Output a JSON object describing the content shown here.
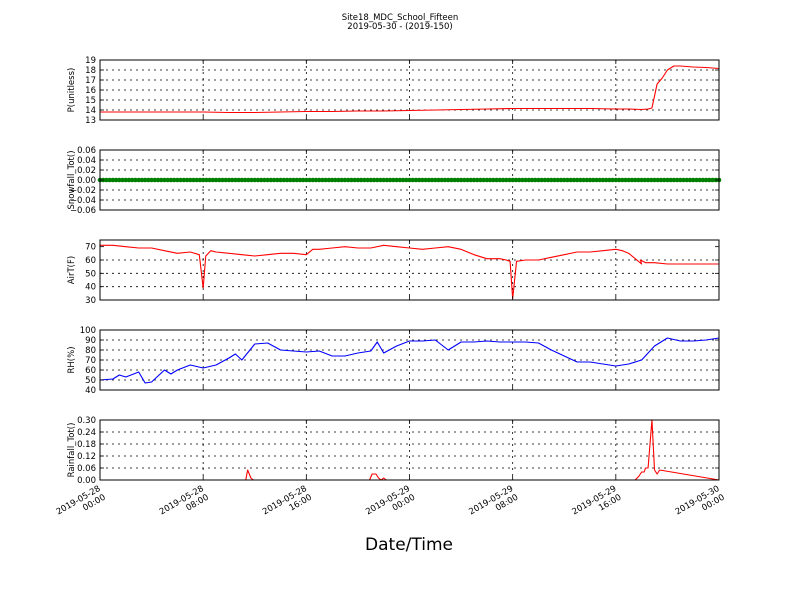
{
  "figure": {
    "title": "Site18_MDC_School_Fifteen",
    "subtitle": "2019-05-30 - (2019-150)",
    "xlabel": "Date/Time",
    "x_ticks": [
      {
        "t": 0,
        "lines": [
          "2019-05-28",
          "00:00"
        ]
      },
      {
        "t": 8,
        "lines": [
          "2019-05-28",
          "08:00"
        ]
      },
      {
        "t": 16,
        "lines": [
          "2019-05-28",
          "16:00"
        ]
      },
      {
        "t": 24,
        "lines": [
          "2019-05-29",
          "00:00"
        ]
      },
      {
        "t": 32,
        "lines": [
          "2019-05-29",
          "08:00"
        ]
      },
      {
        "t": 40,
        "lines": [
          "2019-05-29",
          "16:00"
        ]
      },
      {
        "t": 48,
        "lines": [
          "2019-05-30",
          "00:00"
        ]
      }
    ],
    "x_range_hours": [
      0,
      48
    ]
  },
  "chart_data": [
    {
      "type": "line",
      "ylabel": "P(unitless)",
      "ylim": [
        13,
        19
      ],
      "yticks": [
        13,
        14,
        15,
        16,
        17,
        18,
        19
      ],
      "ytick_labels": [
        "13",
        "14",
        "15",
        "16",
        "17",
        "18",
        "19"
      ],
      "grid": true,
      "series": [
        {
          "color": "#ff0000",
          "x": [
            0,
            2,
            4,
            6,
            8,
            10,
            12,
            14,
            16,
            18,
            20,
            22,
            24,
            26,
            28,
            30,
            32,
            34,
            36,
            38,
            40,
            41,
            42,
            42.5,
            42.8,
            43.2,
            43.6,
            44,
            44.5,
            45,
            46,
            47,
            48
          ],
          "y": [
            13.8,
            13.8,
            13.8,
            13.8,
            13.8,
            13.75,
            13.75,
            13.8,
            13.85,
            13.85,
            13.9,
            13.9,
            13.95,
            14.0,
            14.05,
            14.1,
            14.15,
            14.15,
            14.15,
            14.15,
            14.1,
            14.1,
            14.05,
            14.1,
            14.2,
            16.6,
            17.2,
            18.0,
            18.4,
            18.4,
            18.3,
            18.25,
            18.15
          ]
        }
      ]
    },
    {
      "type": "scatter",
      "ylabel": "Snowfall_Tot()",
      "ylim": [
        -0.06,
        0.06
      ],
      "yticks": [
        -0.06,
        -0.04,
        -0.02,
        0.0,
        0.02,
        0.04,
        0.06
      ],
      "ytick_labels": [
        "−0.06",
        "−0.04",
        "−0.02",
        "0.00",
        "0.02",
        "0.04",
        "0.06"
      ],
      "grid": true,
      "series": [
        {
          "color": "#007f00",
          "constant": 0.0,
          "x_start": 0,
          "x_end": 48
        }
      ]
    },
    {
      "type": "line",
      "ylabel": "AirT(F)",
      "ylim": [
        30,
        75
      ],
      "yticks": [
        30,
        40,
        50,
        60,
        70
      ],
      "ytick_labels": [
        "30",
        "40",
        "50",
        "60",
        "70"
      ],
      "grid": true,
      "series": [
        {
          "color": "#ff0000",
          "x": [
            0,
            1,
            2,
            3,
            4,
            5,
            6,
            7,
            7.7,
            8,
            8.2,
            8.6,
            9,
            10,
            11,
            12,
            13,
            14,
            15,
            16,
            16.5,
            17,
            18,
            19,
            20,
            21,
            22,
            23,
            24,
            25,
            26,
            27,
            28,
            29,
            30,
            31,
            31.5,
            31.8,
            32,
            32.3,
            33,
            34,
            35,
            36,
            37,
            38,
            39,
            40,
            40.5,
            41,
            42,
            41.9,
            42.3,
            43,
            44,
            45,
            46,
            47,
            48
          ],
          "y": [
            71,
            71,
            70,
            69,
            69,
            67,
            65,
            66,
            64,
            39,
            63,
            67,
            66,
            65,
            64,
            63,
            64,
            65,
            65,
            64,
            68,
            68,
            69,
            70,
            69,
            69,
            71,
            70,
            69,
            68,
            69,
            70,
            68,
            64,
            61,
            61,
            60,
            59,
            31,
            59,
            60,
            60,
            62,
            64,
            66,
            66,
            67,
            68,
            67,
            65,
            57,
            60,
            58,
            58,
            57,
            57,
            57,
            57,
            57
          ]
        }
      ]
    },
    {
      "type": "line",
      "ylabel": "RH(%)",
      "ylim": [
        40,
        100
      ],
      "yticks": [
        40,
        50,
        60,
        70,
        80,
        90,
        100
      ],
      "ytick_labels": [
        "40",
        "50",
        "60",
        "70",
        "80",
        "90",
        "100"
      ],
      "grid": true,
      "series": [
        {
          "color": "#0000ff",
          "x": [
            0,
            1,
            1.5,
            2,
            3,
            3.5,
            4,
            5,
            5.5,
            6,
            7,
            8,
            9,
            10,
            10.5,
            11,
            12,
            13,
            14,
            15,
            16,
            17,
            18,
            19,
            20,
            21,
            21.5,
            22,
            23,
            24,
            25,
            26,
            27,
            28,
            29,
            30,
            31,
            32,
            33,
            34,
            35,
            36,
            37,
            38,
            39,
            40,
            41,
            42,
            43,
            44,
            45,
            46,
            47,
            48
          ],
          "y": [
            50,
            51,
            55,
            53,
            58,
            47,
            48,
            60,
            56,
            60,
            65,
            62,
            65,
            72,
            76,
            70,
            86,
            87,
            80,
            79,
            78,
            79,
            74,
            74,
            77,
            79,
            88,
            77,
            84,
            89,
            89,
            90,
            80,
            88,
            88,
            89,
            88,
            88,
            88,
            87,
            80,
            74,
            68,
            68,
            66,
            64,
            66,
            70,
            84,
            92,
            89,
            89,
            90,
            92
          ]
        }
      ]
    },
    {
      "type": "line",
      "ylabel": "Rainfall_Tot()",
      "ylim": [
        0,
        0.3
      ],
      "yticks": [
        0.0,
        0.06,
        0.12,
        0.18,
        0.24,
        0.3
      ],
      "ytick_labels": [
        "0.00",
        "0.06",
        "0.12",
        "0.18",
        "0.24",
        "0.30"
      ],
      "grid": true,
      "series": [
        {
          "color": "#ff0000",
          "x": [
            0,
            11.3,
            11.45,
            11.7,
            11.9,
            20.9,
            21.1,
            21.4,
            21.6,
            21.8,
            22.0,
            22.2,
            41.5,
            41.8,
            42.0,
            42.2,
            42.3,
            42.5,
            42.8,
            43.0,
            43.2,
            43.4,
            48
          ],
          "y": [
            0,
            0,
            0.05,
            0.01,
            0,
            0,
            0.03,
            0.03,
            0.01,
            0,
            0.01,
            0,
            0,
            0.02,
            0.04,
            0.04,
            0.06,
            0.06,
            0.3,
            0.05,
            0.03,
            0.05,
            0
          ]
        }
      ]
    }
  ]
}
